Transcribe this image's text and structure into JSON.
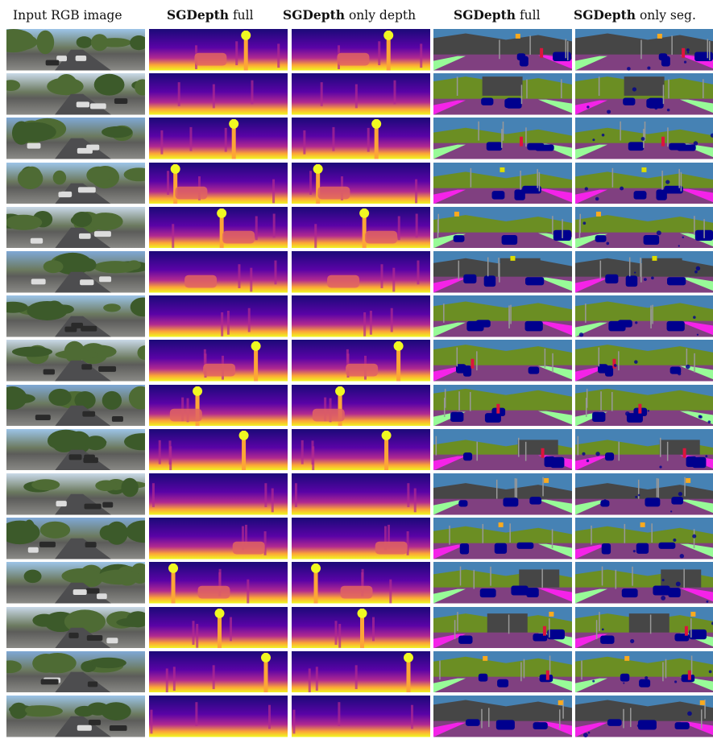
{
  "figure": {
    "columns": [
      {
        "bold": "",
        "text": "Input RGB image",
        "kind": "rgb"
      },
      {
        "bold": "SGDepth",
        "text": " full",
        "kind": "depth"
      },
      {
        "bold": "SGDepth",
        "text": " only depth",
        "kind": "depth"
      },
      {
        "bold": "SGDepth",
        "text": " full",
        "kind": "seg"
      },
      {
        "bold": "SGDepth",
        "text": " only seg.",
        "kind": "seg"
      }
    ],
    "row_count": 16,
    "colors": {
      "depth_far": "#1b0a78",
      "depth_mid1": "#5a03a6",
      "depth_mid2": "#b12a90",
      "depth_mid3": "#e16462",
      "depth_mid4": "#fca636",
      "depth_near": "#f0f921",
      "seg_sky": "#4682b4",
      "seg_vegetation": "#6b8e23",
      "seg_building": "#464646",
      "seg_road": "#804080",
      "seg_sidewalk": "#f423e8",
      "seg_car": "#00008e",
      "seg_terrain": "#98fb98",
      "seg_pole": "#999999",
      "seg_sign": "#dcdc00",
      "seg_light": "#faaa1e",
      "seg_person": "#dc143c"
    }
  }
}
